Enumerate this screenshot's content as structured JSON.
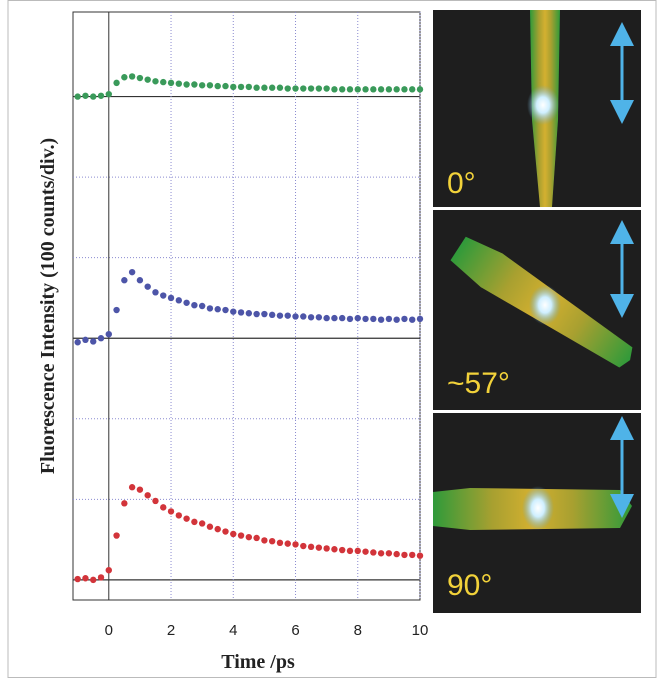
{
  "chart_data": {
    "type": "scatter",
    "y_label": "Fluorescence Intensity (100 counts/div.)",
    "x_label": "Time  /ps",
    "xlim": [
      -1.15,
      10
    ],
    "xticks": [
      0,
      2,
      4,
      6,
      8,
      10
    ],
    "ylim": [
      -0.25,
      7.05
    ],
    "ygrid": [
      1,
      2,
      4,
      5
    ],
    "baselines": [
      0,
      3,
      6
    ],
    "x": [
      -1,
      -0.75,
      -0.5,
      -0.25,
      0,
      0.25,
      0.5,
      0.75,
      1,
      1.25,
      1.5,
      1.75,
      2,
      2.25,
      2.5,
      2.75,
      3,
      3.25,
      3.5,
      3.75,
      4,
      4.25,
      4.5,
      4.75,
      5,
      5.25,
      5.5,
      5.75,
      6,
      6.25,
      6.5,
      6.75,
      7,
      7.25,
      7.5,
      7.75,
      8,
      8.25,
      8.5,
      8.75,
      9,
      9.25,
      9.5,
      9.75,
      10
    ],
    "series": [
      {
        "color": "#3a9a5a",
        "values": [
          6.0,
          6.01,
          6.0,
          6.01,
          6.03,
          6.17,
          6.24,
          6.25,
          6.23,
          6.21,
          6.19,
          6.18,
          6.17,
          6.16,
          6.15,
          6.15,
          6.14,
          6.14,
          6.13,
          6.13,
          6.12,
          6.12,
          6.12,
          6.11,
          6.11,
          6.11,
          6.11,
          6.1,
          6.1,
          6.1,
          6.1,
          6.1,
          6.1,
          6.09,
          6.09,
          6.09,
          6.09,
          6.09,
          6.09,
          6.09,
          6.09,
          6.09,
          6.09,
          6.09,
          6.09
        ]
      },
      {
        "color": "#4d55a8",
        "values": [
          2.95,
          2.98,
          2.96,
          3.0,
          3.05,
          3.35,
          3.72,
          3.82,
          3.72,
          3.64,
          3.57,
          3.53,
          3.5,
          3.47,
          3.44,
          3.41,
          3.4,
          3.37,
          3.36,
          3.35,
          3.33,
          3.32,
          3.31,
          3.3,
          3.3,
          3.29,
          3.28,
          3.28,
          3.27,
          3.27,
          3.26,
          3.26,
          3.25,
          3.25,
          3.25,
          3.24,
          3.25,
          3.24,
          3.24,
          3.23,
          3.24,
          3.23,
          3.24,
          3.23,
          3.24
        ]
      },
      {
        "color": "#d2343a",
        "values": [
          0.01,
          0.02,
          0.0,
          0.03,
          0.12,
          0.55,
          0.95,
          1.15,
          1.12,
          1.05,
          0.98,
          0.9,
          0.85,
          0.8,
          0.76,
          0.72,
          0.7,
          0.66,
          0.63,
          0.6,
          0.57,
          0.55,
          0.53,
          0.52,
          0.49,
          0.48,
          0.46,
          0.45,
          0.44,
          0.42,
          0.41,
          0.4,
          0.39,
          0.38,
          0.37,
          0.36,
          0.36,
          0.35,
          0.34,
          0.33,
          0.33,
          0.32,
          0.31,
          0.31,
          0.3
        ]
      }
    ]
  },
  "photos": [
    {
      "label": "0°"
    },
    {
      "label": "~57°"
    },
    {
      "label": "90°"
    }
  ]
}
